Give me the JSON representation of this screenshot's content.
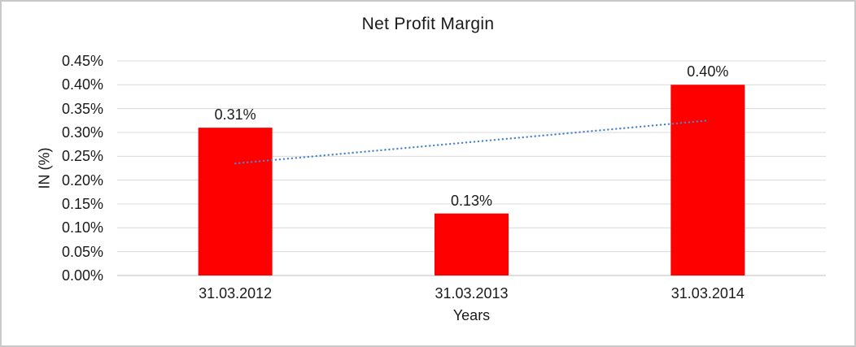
{
  "frame": {
    "border_color": "#c9c9c9",
    "background": "#ffffff"
  },
  "chart_data": {
    "type": "bar",
    "title": "Net Profit Margin",
    "xlabel": "Years",
    "ylabel": "IN (%)",
    "categories": [
      "31.03.2012",
      "31.03.2013",
      "31.03.2014"
    ],
    "values": [
      0.31,
      0.13,
      0.4
    ],
    "data_labels": [
      "0.31%",
      "0.13%",
      "0.40%"
    ],
    "ylim": [
      0,
      0.45
    ],
    "ytick_step": 0.05,
    "ytick_labels": [
      "0.00%",
      "0.05%",
      "0.10%",
      "0.15%",
      "0.20%",
      "0.25%",
      "0.30%",
      "0.35%",
      "0.40%",
      "0.45%"
    ],
    "grid": true,
    "legend": "none",
    "colors": {
      "bar": "#ff0000",
      "trendline": "#4a86c8",
      "gridline": "#d9d9d9",
      "axis_line": "#bfbfbf",
      "text": "#1a1a1a"
    },
    "trendline": {
      "type": "linear",
      "style": "dotted",
      "start_value": 0.235,
      "end_value": 0.325
    }
  }
}
